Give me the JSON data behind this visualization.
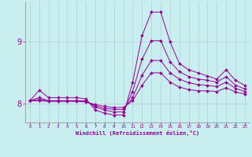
{
  "xlabel": "Windchill (Refroidissement éolien,°C)",
  "ylabel": "",
  "background_color": "#c8eef0",
  "line_color": "#990099",
  "grid_color": "#b0cdd0",
  "xlim": [
    -0.5,
    23.5
  ],
  "ylim": [
    7.7,
    9.65
  ],
  "yticks": [
    8,
    9
  ],
  "xticks": [
    0,
    1,
    2,
    3,
    4,
    5,
    6,
    7,
    8,
    9,
    10,
    11,
    12,
    13,
    14,
    15,
    16,
    17,
    18,
    19,
    20,
    21,
    22,
    23
  ],
  "series": [
    {
      "x": [
        0,
        1,
        2,
        3,
        4,
        5,
        6,
        7,
        8,
        9,
        10,
        11,
        12,
        13,
        14,
        15,
        16,
        17,
        18,
        19,
        20,
        21,
        22,
        23
      ],
      "y": [
        8.05,
        8.22,
        8.1,
        8.1,
        8.1,
        8.1,
        8.08,
        7.9,
        7.85,
        7.82,
        7.82,
        8.35,
        9.1,
        9.48,
        9.48,
        9.0,
        8.65,
        8.55,
        8.5,
        8.45,
        8.4,
        8.55,
        8.38,
        8.3
      ]
    },
    {
      "x": [
        0,
        1,
        2,
        3,
        4,
        5,
        6,
        7,
        8,
        9,
        10,
        11,
        12,
        13,
        14,
        15,
        16,
        17,
        18,
        19,
        20,
        21,
        22,
        23
      ],
      "y": [
        8.05,
        8.1,
        8.05,
        8.05,
        8.05,
        8.05,
        8.05,
        7.95,
        7.9,
        7.87,
        7.87,
        8.2,
        8.72,
        9.02,
        9.02,
        8.68,
        8.52,
        8.44,
        8.4,
        8.38,
        8.35,
        8.44,
        8.3,
        8.24
      ]
    },
    {
      "x": [
        0,
        1,
        2,
        3,
        4,
        5,
        6,
        7,
        8,
        9,
        10,
        11,
        12,
        13,
        14,
        15,
        16,
        17,
        18,
        19,
        20,
        21,
        22,
        23
      ],
      "y": [
        8.05,
        8.07,
        8.05,
        8.05,
        8.05,
        8.05,
        8.04,
        7.97,
        7.93,
        7.91,
        7.91,
        8.1,
        8.46,
        8.7,
        8.7,
        8.5,
        8.4,
        8.34,
        8.31,
        8.3,
        8.28,
        8.35,
        8.25,
        8.2
      ]
    },
    {
      "x": [
        0,
        1,
        2,
        3,
        4,
        5,
        6,
        7,
        8,
        9,
        10,
        11,
        12,
        13,
        14,
        15,
        16,
        17,
        18,
        19,
        20,
        21,
        22,
        23
      ],
      "y": [
        8.05,
        8.05,
        8.04,
        8.04,
        8.04,
        8.04,
        8.03,
        7.99,
        7.96,
        7.94,
        7.94,
        8.05,
        8.3,
        8.5,
        8.5,
        8.35,
        8.27,
        8.23,
        8.21,
        8.21,
        8.2,
        8.26,
        8.19,
        8.16
      ]
    }
  ]
}
